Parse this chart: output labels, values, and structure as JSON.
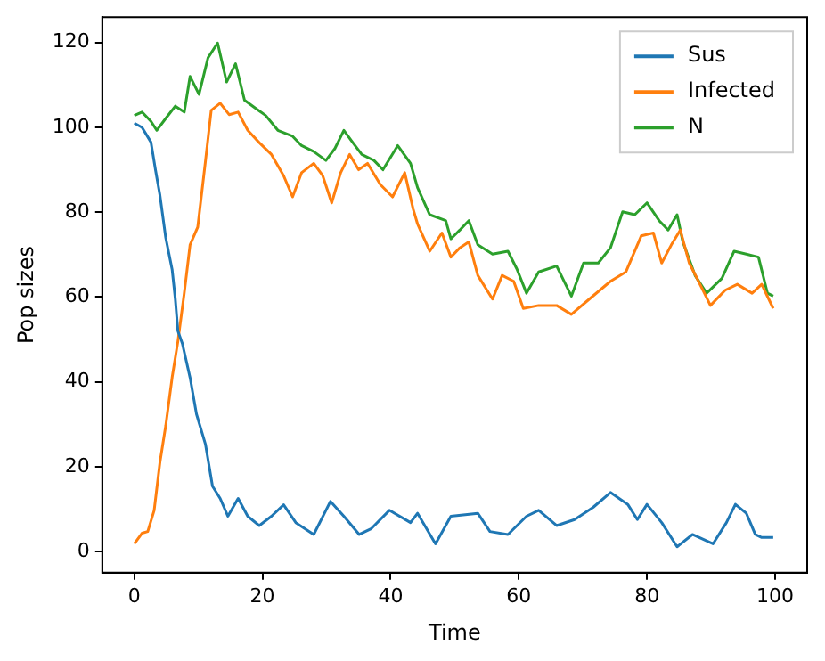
{
  "chart_data": {
    "type": "line",
    "xlabel": "Time",
    "ylabel": "Pop sizes",
    "xlim": [
      -5,
      105
    ],
    "ylim": [
      -5,
      126
    ],
    "xticks": [
      0,
      20,
      40,
      60,
      80,
      100
    ],
    "yticks": [
      0,
      20,
      40,
      60,
      80,
      100,
      120
    ],
    "grid": false,
    "legend": "top right",
    "marker": "none",
    "line_style": "solid",
    "series": [
      {
        "name": "Sus",
        "color": "#1f77b4",
        "x": [
          0,
          1.2,
          2.6,
          3.3,
          4,
          4.9,
          5.9,
          6.4,
          6.8,
          7.5,
          8.7,
          9.7,
          11.1,
          12.2,
          13.4,
          14.6,
          16.2,
          17.7,
          19.5,
          21.4,
          23.3,
          25.2,
          28,
          30.6,
          32.7,
          35.1,
          37,
          39.8,
          43.1,
          44.2,
          47,
          49.4,
          53.6,
          55.5,
          58.3,
          61.2,
          63.1,
          65.9,
          68.7,
          71.6,
          74.3,
          77,
          78.5,
          80,
          82.3,
          84.7,
          87.1,
          90.3,
          92.4,
          93.8,
          95.5,
          96.9,
          97.9,
          99.7
        ],
        "values": [
          101,
          100,
          96.5,
          90,
          84,
          74,
          66.5,
          59.5,
          52,
          49,
          41,
          32.4,
          25.3,
          15.4,
          12.5,
          8.3,
          12.5,
          8.3,
          6.1,
          8.3,
          11,
          6.8,
          4,
          11.8,
          8.3,
          4,
          5.4,
          9.7,
          6.8,
          9,
          1.8,
          8.3,
          9,
          4.7,
          4,
          8.3,
          9.7,
          6.1,
          7.5,
          10.4,
          13.9,
          11.1,
          7.5,
          11.1,
          6.8,
          1.1,
          4,
          1.8,
          6.8,
          11.1,
          9,
          4,
          3.3,
          3.3
        ]
      },
      {
        "name": "Infected",
        "color": "#ff7f0e",
        "x": [
          0,
          1.2,
          2.1,
          3.1,
          4,
          4.9,
          5.9,
          6.8,
          7.8,
          8.7,
          9.9,
          11.1,
          12,
          13.4,
          14.8,
          16.2,
          17.7,
          19.5,
          21.4,
          23.3,
          24.7,
          26.1,
          28,
          29.4,
          30.8,
          32.2,
          33.6,
          35,
          36.4,
          38.4,
          40.3,
          42.2,
          43.5,
          44.2,
          46.1,
          48,
          49.4,
          50.8,
          52.2,
          53.6,
          55.9,
          57.4,
          59.2,
          60.7,
          63.1,
          65.9,
          68.2,
          71,
          74.3,
          76.7,
          79.1,
          81,
          82.3,
          83.8,
          85.2,
          86.6,
          88.5,
          89.9,
          92.2,
          94.1,
          96.4,
          97.9,
          99.7
        ],
        "values": [
          1.8,
          4.3,
          4.7,
          9.7,
          21,
          29.6,
          41,
          49.5,
          61,
          72.3,
          76.5,
          92,
          104,
          105.7,
          103,
          103.6,
          99.3,
          96.4,
          93.6,
          88.6,
          83.6,
          89.3,
          91.5,
          88.6,
          82.2,
          89.3,
          93.6,
          90,
          91.5,
          86.5,
          83.6,
          89.3,
          80.8,
          77.2,
          70.8,
          75.1,
          69.4,
          71.6,
          73,
          65.1,
          59.5,
          65.1,
          63.7,
          57.3,
          58,
          58,
          55.9,
          59.5,
          63.7,
          65.9,
          74.4,
          75.1,
          68,
          72.3,
          75.8,
          68,
          62.3,
          58,
          61.6,
          63,
          60.9,
          63,
          57.3
        ]
      },
      {
        "name": "N",
        "color": "#2ca02c",
        "x": [
          0,
          1.2,
          2.6,
          3.5,
          4.9,
          6.4,
          7.8,
          8.7,
          10.1,
          11.5,
          13,
          14.4,
          15.8,
          17.2,
          19.1,
          20.5,
          22.4,
          24.7,
          26.1,
          28,
          29.9,
          31.3,
          32.7,
          34.1,
          35.5,
          37.4,
          38.8,
          41.1,
          43.1,
          44.2,
          46.1,
          48.6,
          49.4,
          50.8,
          52.2,
          53.6,
          55.9,
          58.3,
          59.7,
          61.2,
          63.1,
          65.9,
          68.2,
          70.1,
          72.4,
          74.3,
          76.2,
          78.1,
          80,
          81.9,
          83.3,
          84.7,
          85.6,
          87.5,
          89.3,
          91.7,
          93.6,
          95.5,
          97.4,
          98.8,
          99.7
        ],
        "values": [
          102.8,
          103.6,
          101.4,
          99.3,
          102.1,
          105,
          103.6,
          112,
          107.8,
          116.4,
          119.9,
          110.7,
          115,
          106.4,
          104.3,
          102.8,
          99.3,
          97.9,
          95.7,
          94.3,
          92.2,
          95,
          99.3,
          96.4,
          93.6,
          92.2,
          90,
          95.7,
          91.5,
          85.8,
          79.4,
          78,
          73.7,
          75.8,
          78,
          72.3,
          70.1,
          70.8,
          66.6,
          60.9,
          65.9,
          67.3,
          60.2,
          68,
          68,
          71.6,
          80.1,
          79.4,
          82.2,
          78,
          75.8,
          79.4,
          73,
          65.1,
          60.9,
          64.4,
          70.8,
          70.1,
          69.4,
          60.9,
          60.2
        ]
      }
    ]
  }
}
